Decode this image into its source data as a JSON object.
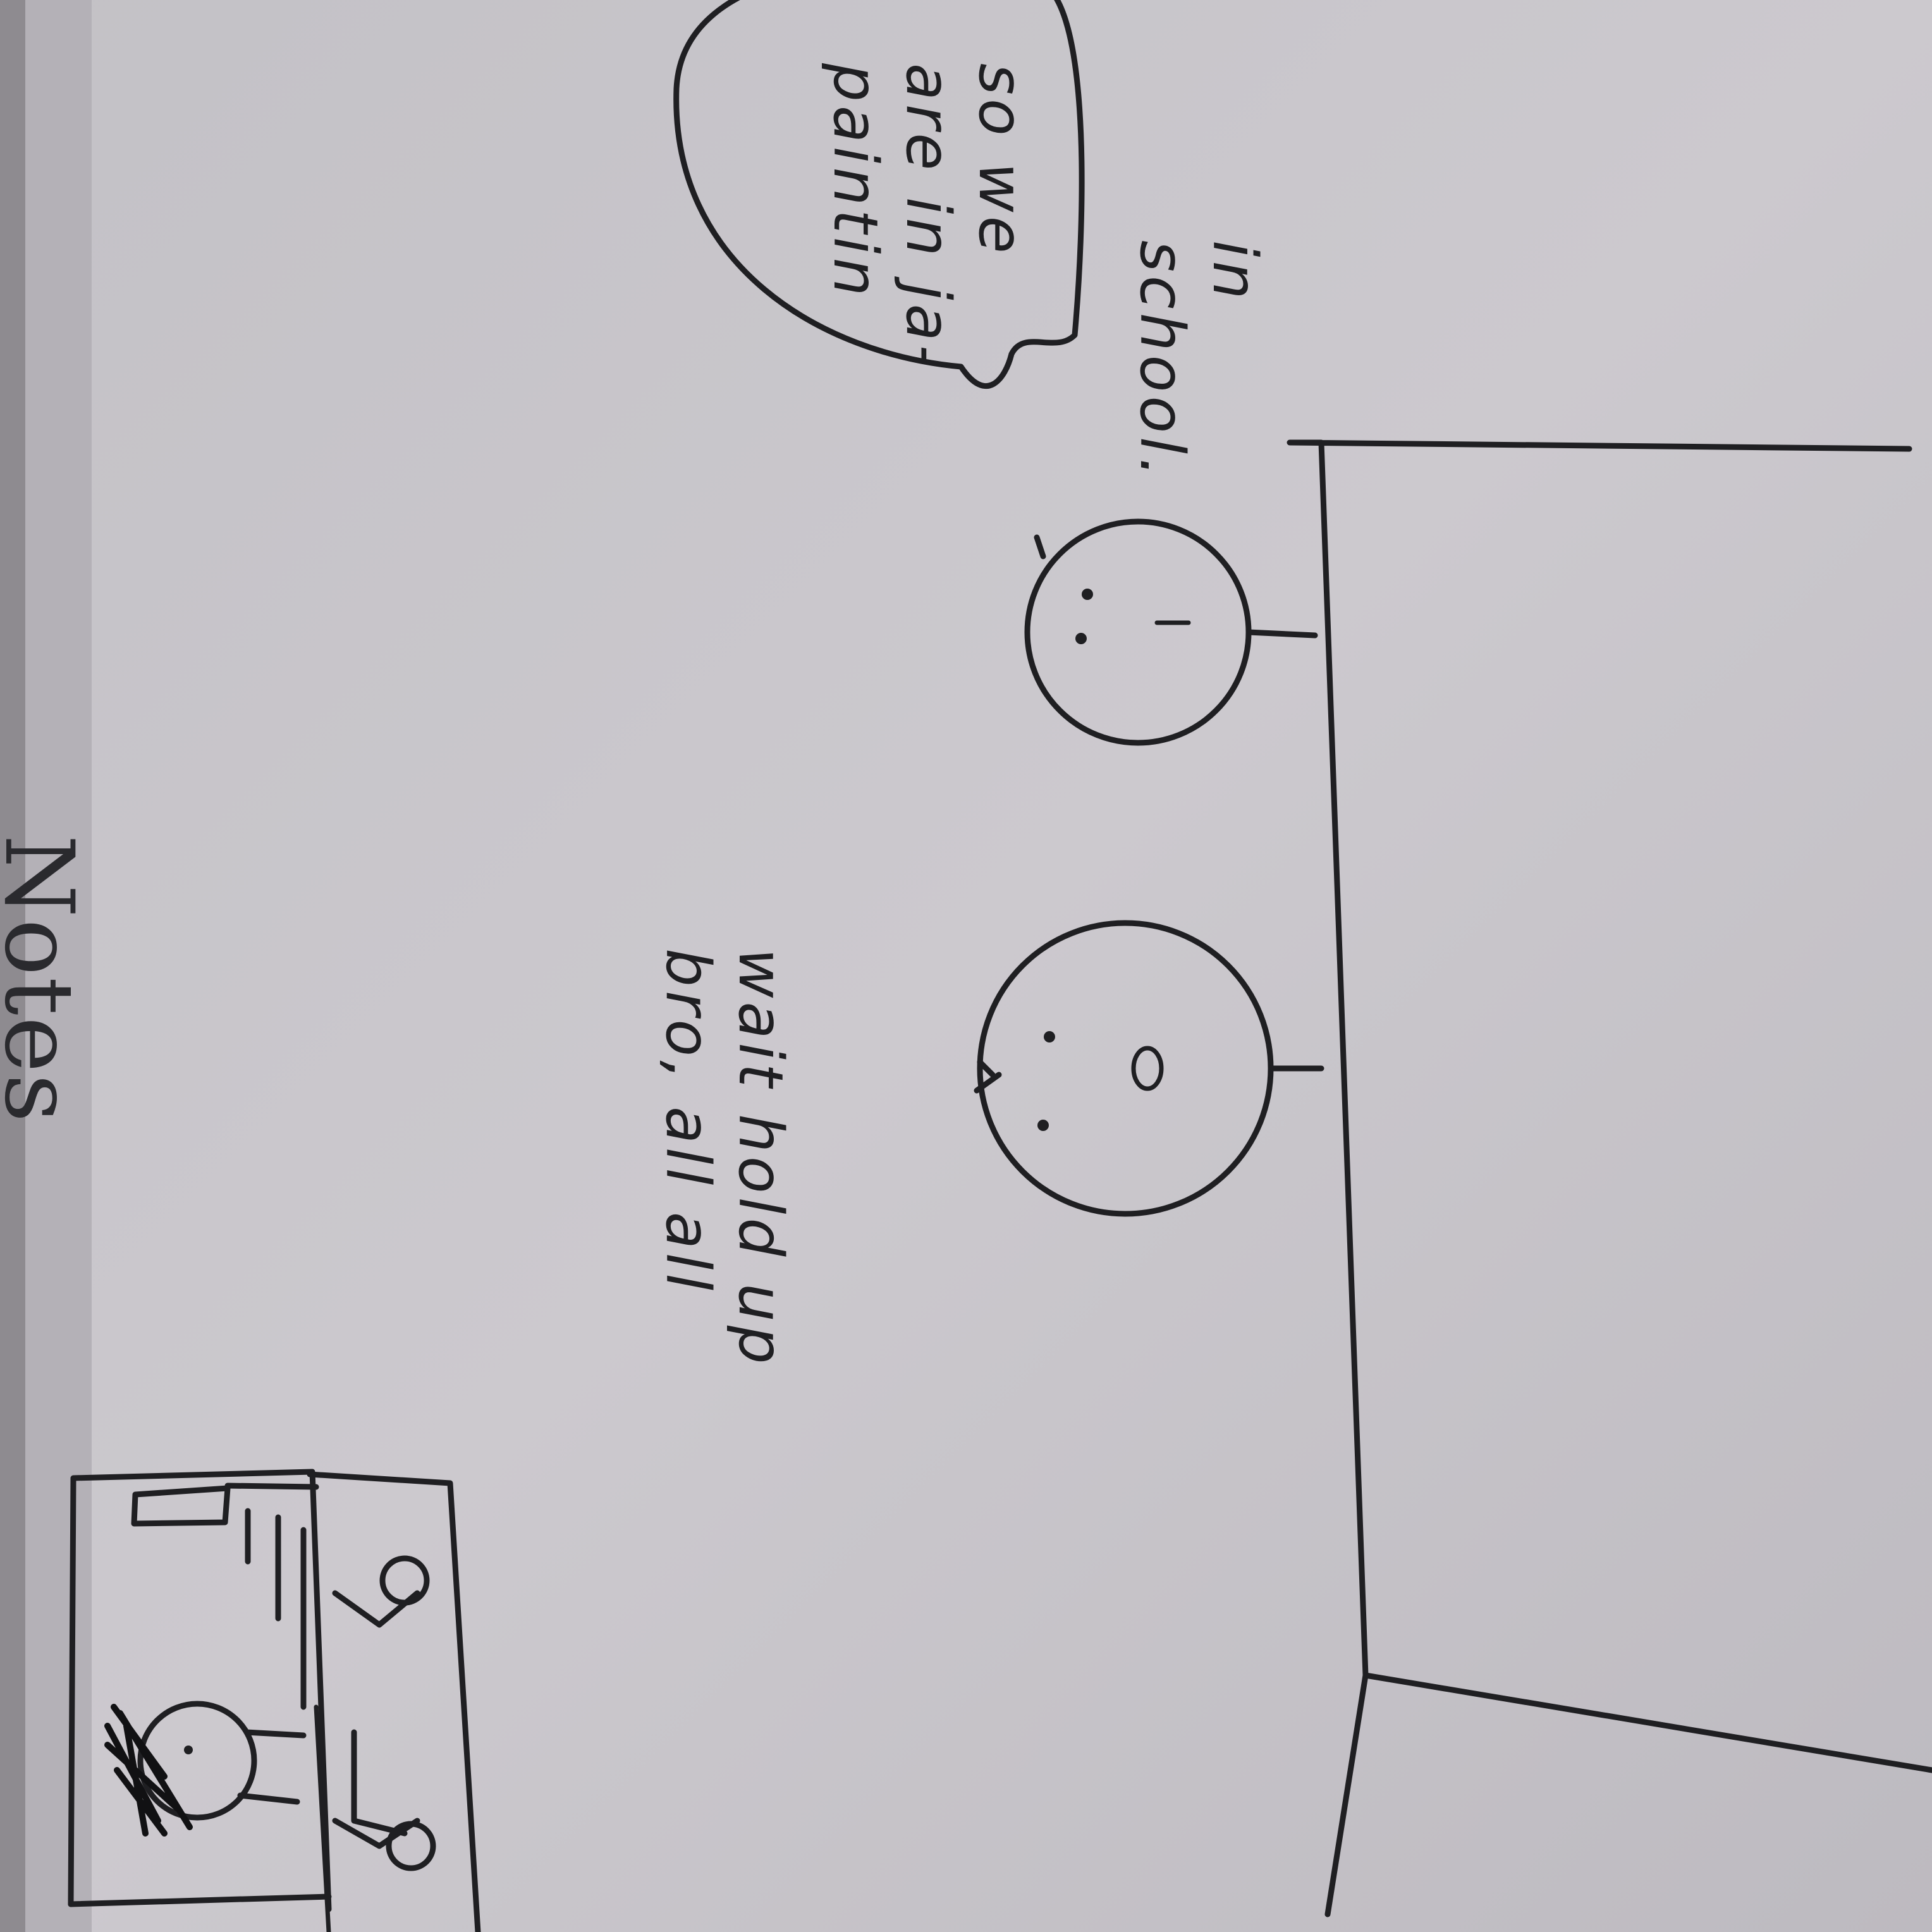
{
  "page": {
    "header_title": "Notes"
  },
  "panel_main": {
    "caption_left": [
      "wait hold up",
      "bro, all all"
    ],
    "speech_bubble": [
      "so we",
      "are in ja-",
      "paintin"
    ],
    "caption_right": [
      "in",
      "school."
    ]
  },
  "colors": {
    "paper": "#c9c7cc",
    "header_band": "#b7b4ba",
    "page_edge": "#8e8b90",
    "ink": "#1f1f22"
  }
}
